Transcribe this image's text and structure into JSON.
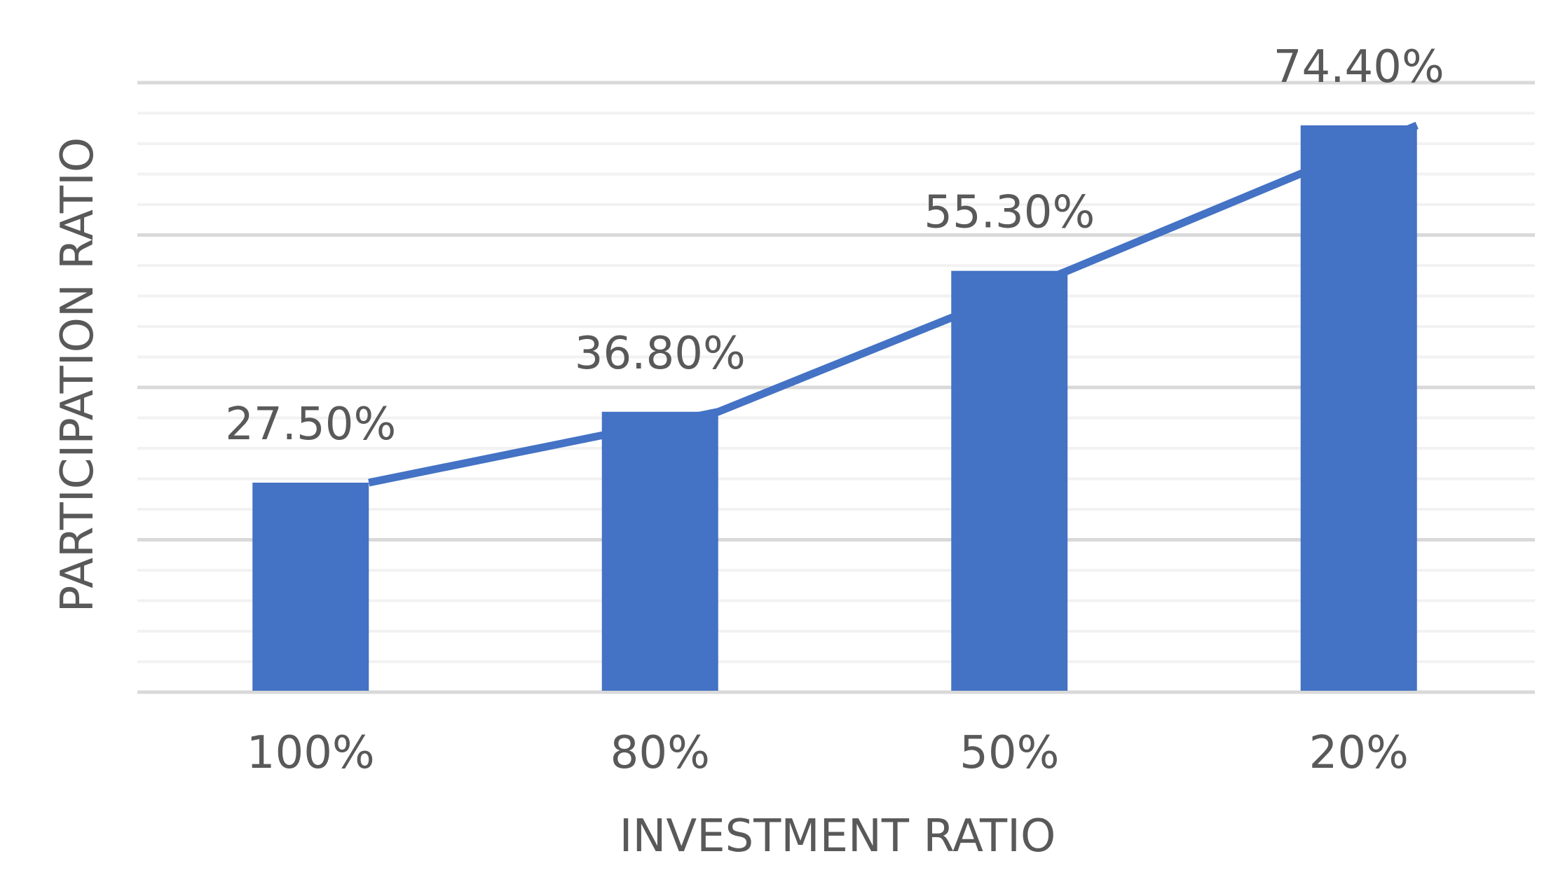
{
  "chart_data": {
    "type": "bar",
    "categories": [
      "100%",
      "80%",
      "50%",
      "20%"
    ],
    "values": [
      27.5,
      36.8,
      55.3,
      74.4
    ],
    "data_labels": [
      "27.50%",
      "36.80%",
      "55.30%",
      "74.40%"
    ],
    "title": "",
    "xlabel": "INVESTMENT RATIO",
    "ylabel": "PARTICIPATION RATIO",
    "ylim": [
      0,
      80
    ],
    "grid": true,
    "legend": "none",
    "overlay": {
      "type": "line",
      "values": [
        27.5,
        36.8,
        55.3,
        74.4
      ]
    },
    "colors": {
      "bar": "#4472C4",
      "line": "#4472C4",
      "grid_major": "#d9d9d9",
      "grid_minor": "#f2f2f2",
      "text": "#595959"
    }
  }
}
